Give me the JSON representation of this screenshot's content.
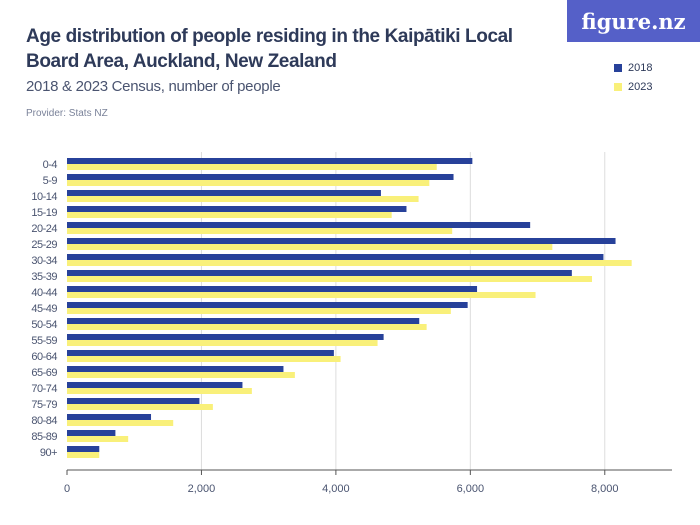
{
  "logo": "figure.nz",
  "title": "Age distribution of people residing in the Kaipātiki Local Board Area, Auckland, New Zealand",
  "subtitle": "2018 & 2023 Census, number of people",
  "provider": "Provider: Stats NZ",
  "chart_data": {
    "type": "bar",
    "orientation": "horizontal",
    "title": "Age distribution of people residing in the Kaipātiki Local Board Area, Auckland, New Zealand",
    "subtitle": "2018 & 2023 Census, number of people",
    "categories": [
      "0-4",
      "5-9",
      "10-14",
      "15-19",
      "20-24",
      "25-29",
      "30-34",
      "35-39",
      "40-44",
      "45-49",
      "50-54",
      "55-59",
      "60-64",
      "65-69",
      "70-74",
      "75-79",
      "80-84",
      "85-89",
      "90+"
    ],
    "series": [
      {
        "name": "2018",
        "color": "#27419a",
        "values": [
          6030,
          5750,
          4670,
          5050,
          6890,
          8160,
          7980,
          7510,
          6100,
          5960,
          5240,
          4710,
          3970,
          3220,
          2610,
          1970,
          1250,
          720,
          480
        ]
      },
      {
        "name": "2023",
        "color": "#f9f07a",
        "values": [
          5500,
          5390,
          5230,
          4830,
          5730,
          7220,
          8400,
          7810,
          6970,
          5710,
          5350,
          4620,
          4070,
          3390,
          2750,
          2170,
          1580,
          910,
          480
        ]
      }
    ],
    "xlim": [
      0,
      9000
    ],
    "xticks": [
      "0",
      "2,000",
      "4,000",
      "6,000",
      "8,000"
    ],
    "grid": true,
    "legend": "top-right"
  }
}
